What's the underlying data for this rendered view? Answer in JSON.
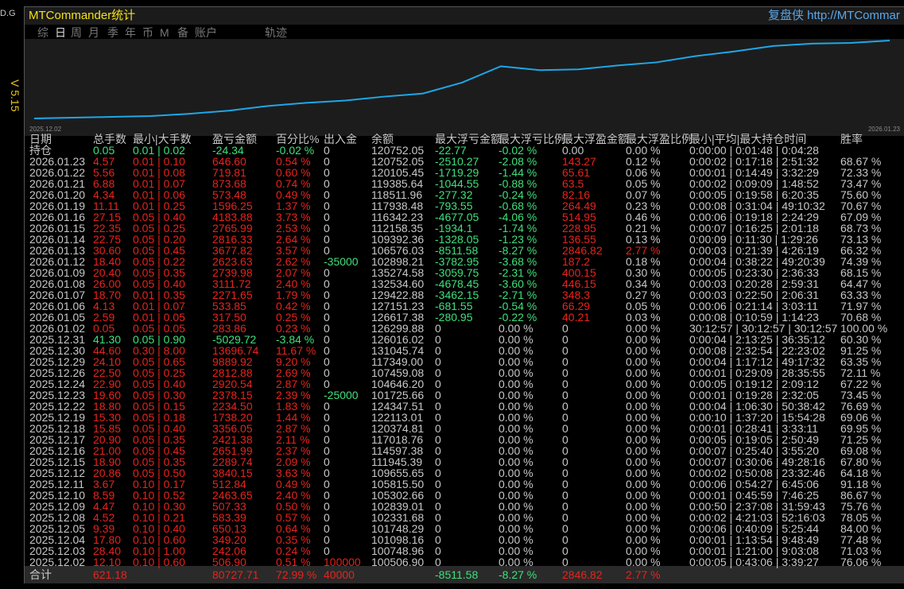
{
  "side": {
    "label": "D.G",
    "version": "V 5.15"
  },
  "header": {
    "title": "MTCommander统计",
    "link": "复盘侠 http://MTCommar"
  },
  "tabs": [
    "综",
    "日",
    "周",
    "月",
    "季",
    "年",
    "币",
    "M",
    "备",
    "账户",
    "轨迹"
  ],
  "equity_chart": {
    "x_labels": [
      "2025.12.02",
      "2026.01.23"
    ],
    "values": [
      0,
      1,
      2,
      3,
      6,
      10,
      16,
      20,
      23,
      28,
      32,
      46,
      67,
      62,
      63,
      68,
      72,
      80,
      86,
      93,
      96,
      97,
      100
    ],
    "color": "#1ea7e8"
  },
  "table": {
    "columns": [
      "日期",
      "总手数",
      "最小|大手数",
      "盈亏金额",
      "百分比%",
      "出入金",
      "余额",
      "最大浮亏金额",
      "最大浮亏比例",
      "最大浮盈金额",
      "最大浮盈比例",
      "最小|平均|最大持仓时间",
      "胜率"
    ],
    "rows": [
      [
        "持仓",
        "0.05",
        "0.01 | 0.02",
        "-24.34",
        "-0.02 %",
        "0",
        "120752.05",
        "-22.77",
        "-0.02 %",
        "0.00",
        "0.00 %",
        "0:00:00 | 0:01:48 | 0:04:28"
      ],
      [
        "2026.01.23",
        "4.57",
        "0.01 | 0.10",
        "646.60",
        "0.54 %",
        "0",
        "120752.05",
        "-2510.27",
        "-2.08 %",
        "143.27",
        "0.12 %",
        "0:00:02 | 0:17:18 | 2:51:32",
        "68.67 %"
      ],
      [
        "2026.01.22",
        "5.56",
        "0.01 | 0.08",
        "719.81",
        "0.60 %",
        "0",
        "120105.45",
        "-1719.29",
        "-1.44 %",
        "65.61",
        "0.06 %",
        "0:00:01 | 0:14:49 | 3:32:29",
        "72.33 %"
      ],
      [
        "2026.01.21",
        "6.88",
        "0.01 | 0.07",
        "873.68",
        "0.74 %",
        "0",
        "119385.64",
        "-1044.55",
        "-0.88 %",
        "63.5",
        "0.05 %",
        "0:00:02 | 0:09:09 | 1:48:52",
        "73.47 %"
      ],
      [
        "2026.01.20",
        "4.34",
        "0.01 | 0.06",
        "573.48",
        "0.49 %",
        "0",
        "118511.96",
        "-277.32",
        "-0.24 %",
        "82.16",
        "0.07 %",
        "0:00:05 | 0:19:58 | 6:20:35",
        "75.60 %"
      ],
      [
        "2026.01.19",
        "11.11",
        "0.01 | 0.25",
        "1596.25",
        "1.37 %",
        "0",
        "117938.48",
        "-793.55",
        "-0.68 %",
        "264.49",
        "0.23 %",
        "0:00:08 | 0:31:04 | 49:10:32",
        "70.67 %"
      ],
      [
        "2026.01.16",
        "27.15",
        "0.05 | 0.40",
        "4183.88",
        "3.73 %",
        "0",
        "116342.23",
        "-4677.05",
        "-4.06 %",
        "514.95",
        "0.46 %",
        "0:00:06 | 0:19:18 | 2:24:29",
        "67.09 %"
      ],
      [
        "2026.01.15",
        "22.35",
        "0.05 | 0.25",
        "2765.99",
        "2.53 %",
        "0",
        "112158.35",
        "-1934.1",
        "-1.74 %",
        "228.95",
        "0.21 %",
        "0:00:07 | 0:16:25 | 2:01:18",
        "68.73 %"
      ],
      [
        "2026.01.14",
        "22.75",
        "0.05 | 0.20",
        "2816.33",
        "2.64 %",
        "0",
        "109392.36",
        "-1328.05",
        "-1.23 %",
        "136.55",
        "0.13 %",
        "0:00:09 | 0:11:30 | 1:29:26",
        "73.13 %"
      ],
      [
        "2026.01.13",
        "30.60",
        "0.05 | 0.45",
        "3677.82",
        "3.57 %",
        "0",
        "106576.03",
        "-8511.58",
        "-8.27 %",
        "2846.82",
        "2.77 %",
        "0:00:03 | 0:21:39 | 4:26:19",
        "66.32 %"
      ],
      [
        "2026.01.12",
        "18.40",
        "0.05 | 0.22",
        "2623.63",
        "2.62 %",
        "-35000",
        "102898.21",
        "-3782.95",
        "-3.68 %",
        "187.2",
        "0.18 %",
        "0:00:04 | 0:38:22 | 49:20:39",
        "74.39 %"
      ],
      [
        "2026.01.09",
        "20.40",
        "0.05 | 0.35",
        "2739.98",
        "2.07 %",
        "0",
        "135274.58",
        "-3059.75",
        "-2.31 %",
        "400.15",
        "0.30 %",
        "0:00:05 | 0:23:30 | 2:36:33",
        "68.15 %"
      ],
      [
        "2026.01.08",
        "26.00",
        "0.05 | 0.40",
        "3111.72",
        "2.40 %",
        "0",
        "132534.60",
        "-4678.45",
        "-3.60 %",
        "446.15",
        "0.34 %",
        "0:00:03 | 0:20:28 | 2:59:31",
        "64.47 %"
      ],
      [
        "2026.01.07",
        "18.70",
        "0.01 | 0.35",
        "2271.65",
        "1.79 %",
        "0",
        "129422.88",
        "-3462.15",
        "-2.71 %",
        "348.3",
        "0.27 %",
        "0:00:03 | 0:22:50 | 2:06:31",
        "63.33 %"
      ],
      [
        "2026.01.06",
        "4.13",
        "0.01 | 0.07",
        "533.85",
        "0.42 %",
        "0",
        "127151.23",
        "-681.55",
        "-0.54 %",
        "66.29",
        "0.05 %",
        "0:00:06 | 0:21:14 | 3:03:11",
        "71.97 %"
      ],
      [
        "2026.01.05",
        "2.59",
        "0.01 | 0.05",
        "317.50",
        "0.25 %",
        "0",
        "126617.38",
        "-280.95",
        "-0.22 %",
        "40.21",
        "0.03 %",
        "0:00:08 | 0:10:59 | 1:14:23",
        "70.68 %"
      ],
      [
        "2026.01.02",
        "0.05",
        "0.05 | 0.05",
        "283.86",
        "0.23 %",
        "0",
        "126299.88",
        "0",
        "0.00 %",
        "0",
        "0.00 %",
        "30:12:57 | 30:12:57 | 30:12:57",
        "100.00 %"
      ],
      [
        "2025.12.31",
        "41.30",
        "0.05 | 0.90",
        "-5029.72",
        "-3.84 %",
        "0",
        "126016.02",
        "0",
        "0.00 %",
        "0",
        "0.00 %",
        "0:00:04 | 2:13:25 | 36:35:12",
        "60.30 %"
      ],
      [
        "2025.12.30",
        "44.60",
        "0.30 | 8.00",
        "13696.74",
        "11.67 %",
        "0",
        "131045.74",
        "0",
        "0.00 %",
        "0",
        "0.00 %",
        "0:00:08 | 2:32:54 | 22:23:02",
        "91.25 %"
      ],
      [
        "2025.12.29",
        "24.10",
        "0.05 | 0.65",
        "9889.92",
        "9.20 %",
        "0",
        "117349.00",
        "0",
        "0.00 %",
        "0",
        "0.00 %",
        "0:00:04 | 1:17:12 | 49:17:32",
        "63.35 %"
      ],
      [
        "2025.12.26",
        "22.50",
        "0.05 | 0.25",
        "2812.88",
        "2.69 %",
        "0",
        "107459.08",
        "0",
        "0.00 %",
        "0",
        "0.00 %",
        "0:00:01 | 0:29:09 | 28:35:55",
        "72.11 %"
      ],
      [
        "2025.12.24",
        "22.90",
        "0.05 | 0.40",
        "2920.54",
        "2.87 %",
        "0",
        "104646.20",
        "0",
        "0.00 %",
        "0",
        "0.00 %",
        "0:00:05 | 0:19:12 | 2:09:12",
        "67.22 %"
      ],
      [
        "2025.12.23",
        "19.60",
        "0.05 | 0.30",
        "2378.15",
        "2.39 %",
        "-25000",
        "101725.66",
        "0",
        "0.00 %",
        "0",
        "0.00 %",
        "0:00:01 | 0:19:28 | 2:32:05",
        "73.45 %"
      ],
      [
        "2025.12.22",
        "18.80",
        "0.05 | 0.15",
        "2234.50",
        "1.83 %",
        "0",
        "124347.51",
        "0",
        "0.00 %",
        "0",
        "0.00 %",
        "0:00:04 | 1:06:30 | 50:38:42",
        "76.69 %"
      ],
      [
        "2025.12.19",
        "15.30",
        "0.05 | 0.18",
        "1738.20",
        "1.44 %",
        "0",
        "122113.01",
        "0",
        "0.00 %",
        "0",
        "0.00 %",
        "0:00:10 | 1:37:20 | 15:54:28",
        "69.06 %"
      ],
      [
        "2025.12.18",
        "15.85",
        "0.05 | 0.40",
        "3356.05",
        "2.87 %",
        "0",
        "120374.81",
        "0",
        "0.00 %",
        "0",
        "0.00 %",
        "0:00:01 | 0:28:41 | 3:33:11",
        "69.95 %"
      ],
      [
        "2025.12.17",
        "20.90",
        "0.05 | 0.35",
        "2421.38",
        "2.11 %",
        "0",
        "117018.76",
        "0",
        "0.00 %",
        "0",
        "0.00 %",
        "0:00:05 | 0:19:05 | 2:50:49",
        "71.25 %"
      ],
      [
        "2025.12.16",
        "21.00",
        "0.05 | 0.45",
        "2651.99",
        "2.37 %",
        "0",
        "114597.38",
        "0",
        "0.00 %",
        "0",
        "0.00 %",
        "0:00:07 | 0:25:40 | 3:55:20",
        "69.08 %"
      ],
      [
        "2025.12.15",
        "18.90",
        "0.05 | 0.35",
        "2289.74",
        "2.09 %",
        "0",
        "111945.39",
        "0",
        "0.00 %",
        "0",
        "0.00 %",
        "0:00:07 | 0:30:06 | 49:28:16",
        "67.80 %"
      ],
      [
        "2025.12.12",
        "20.86",
        "0.05 | 0.50",
        "3840.15",
        "3.63 %",
        "0",
        "109655.65",
        "0",
        "0.00 %",
        "0",
        "0.00 %",
        "0:00:02 | 0:50:08 | 23:32:46",
        "64.18 %"
      ],
      [
        "2025.12.11",
        "3.67",
        "0.10 | 0.17",
        "512.84",
        "0.49 %",
        "0",
        "105815.50",
        "0",
        "0.00 %",
        "0",
        "0.00 %",
        "0:00:06 | 0:54:27 | 6:45:06",
        "91.18 %"
      ],
      [
        "2025.12.10",
        "8.59",
        "0.10 | 0.52",
        "2463.65",
        "2.40 %",
        "0",
        "105302.66",
        "0",
        "0.00 %",
        "0",
        "0.00 %",
        "0:00:01 | 0:45:59 | 7:46:25",
        "86.67 %"
      ],
      [
        "2025.12.09",
        "4.47",
        "0.10 | 0.30",
        "507.33",
        "0.50 %",
        "0",
        "102839.01",
        "0",
        "0.00 %",
        "0",
        "0.00 %",
        "0:00:50 | 2:37:08 | 31:59:43",
        "75.76 %"
      ],
      [
        "2025.12.08",
        "4.52",
        "0.10 | 0.21",
        "583.39",
        "0.57 %",
        "0",
        "102331.68",
        "0",
        "0.00 %",
        "0",
        "0.00 %",
        "0:00:02 | 4:21:03 | 52:16:03",
        "78.05 %"
      ],
      [
        "2025.12.05",
        "9.39",
        "0.10 | 0.40",
        "650.13",
        "0.64 %",
        "0",
        "101748.29",
        "0",
        "0.00 %",
        "0",
        "0.00 %",
        "0:00:06 | 0:40:09 | 5:25:44",
        "84.00 %"
      ],
      [
        "2025.12.04",
        "17.80",
        "0.10 | 0.60",
        "349.20",
        "0.35 %",
        "0",
        "101098.16",
        "0",
        "0.00 %",
        "0",
        "0.00 %",
        "0:00:01 | 1:13:54 | 9:48:49",
        "77.48 %"
      ],
      [
        "2025.12.03",
        "28.40",
        "0.10 | 1.00",
        "242.06",
        "0.24 %",
        "0",
        "100748.96",
        "0",
        "0.00 %",
        "0",
        "0.00 %",
        "0:00:01 | 1:21:00 | 9:03:08",
        "71.03 %"
      ],
      [
        "2025.12.02",
        "12.10",
        "0.10 | 0.60",
        "506.90",
        "0.51 %",
        "100000",
        "100506.90",
        "0",
        "0.00 %",
        "0",
        "0.00 %",
        "0:00:05 | 0:43:06 | 3:39:27",
        "76.06 %"
      ]
    ],
    "footer": [
      "合计",
      "621.18",
      null,
      "80727.71",
      "72.99 %",
      "40000",
      null,
      "-8511.58",
      "-8.27 %",
      "2846.82",
      "2.77 %"
    ]
  }
}
